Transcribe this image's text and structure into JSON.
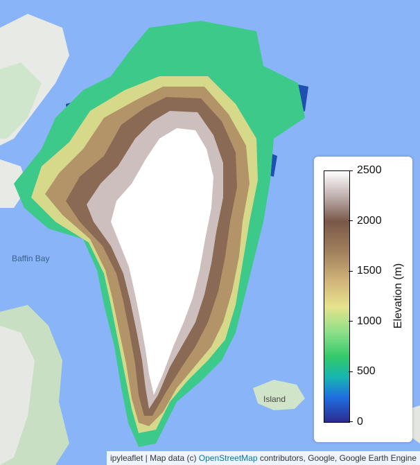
{
  "map": {
    "labels": {
      "baffin_bay": "Baffin Bay",
      "island": "Island"
    }
  },
  "legend": {
    "title": "Elevation (m)",
    "ticks": [
      "2500",
      "2000",
      "1500",
      "1000",
      "500",
      "0"
    ],
    "min": 0,
    "max": 2500,
    "colors": [
      "#2b2c8f",
      "#1f6fe0",
      "#17b6b0",
      "#33c96a",
      "#e6e28c",
      "#a0805c",
      "#7a5848",
      "#ffffff"
    ]
  },
  "attribution": {
    "prefix": "ipyleaflet | Map data (c) ",
    "link": "OpenStreetMap",
    "suffix": " contributors, Google, Google Earth Engine"
  }
}
